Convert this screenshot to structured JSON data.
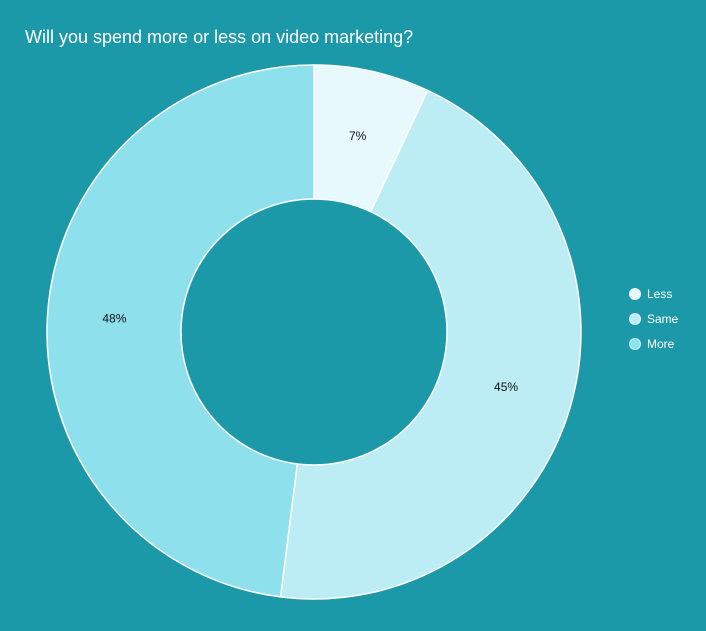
{
  "chart_data": {
    "type": "pie",
    "variant": "donut",
    "title": "Will you spend more or less on video marketing?",
    "categories": [
      "Less",
      "Same",
      "More"
    ],
    "values": [
      7,
      45,
      48
    ],
    "labels": [
      "7%",
      "45%",
      "48%"
    ],
    "colors": [
      "#e8f9fd",
      "#bcecf4",
      "#8ee1ec"
    ],
    "legend_position": "right",
    "background": "#1b99a8"
  }
}
